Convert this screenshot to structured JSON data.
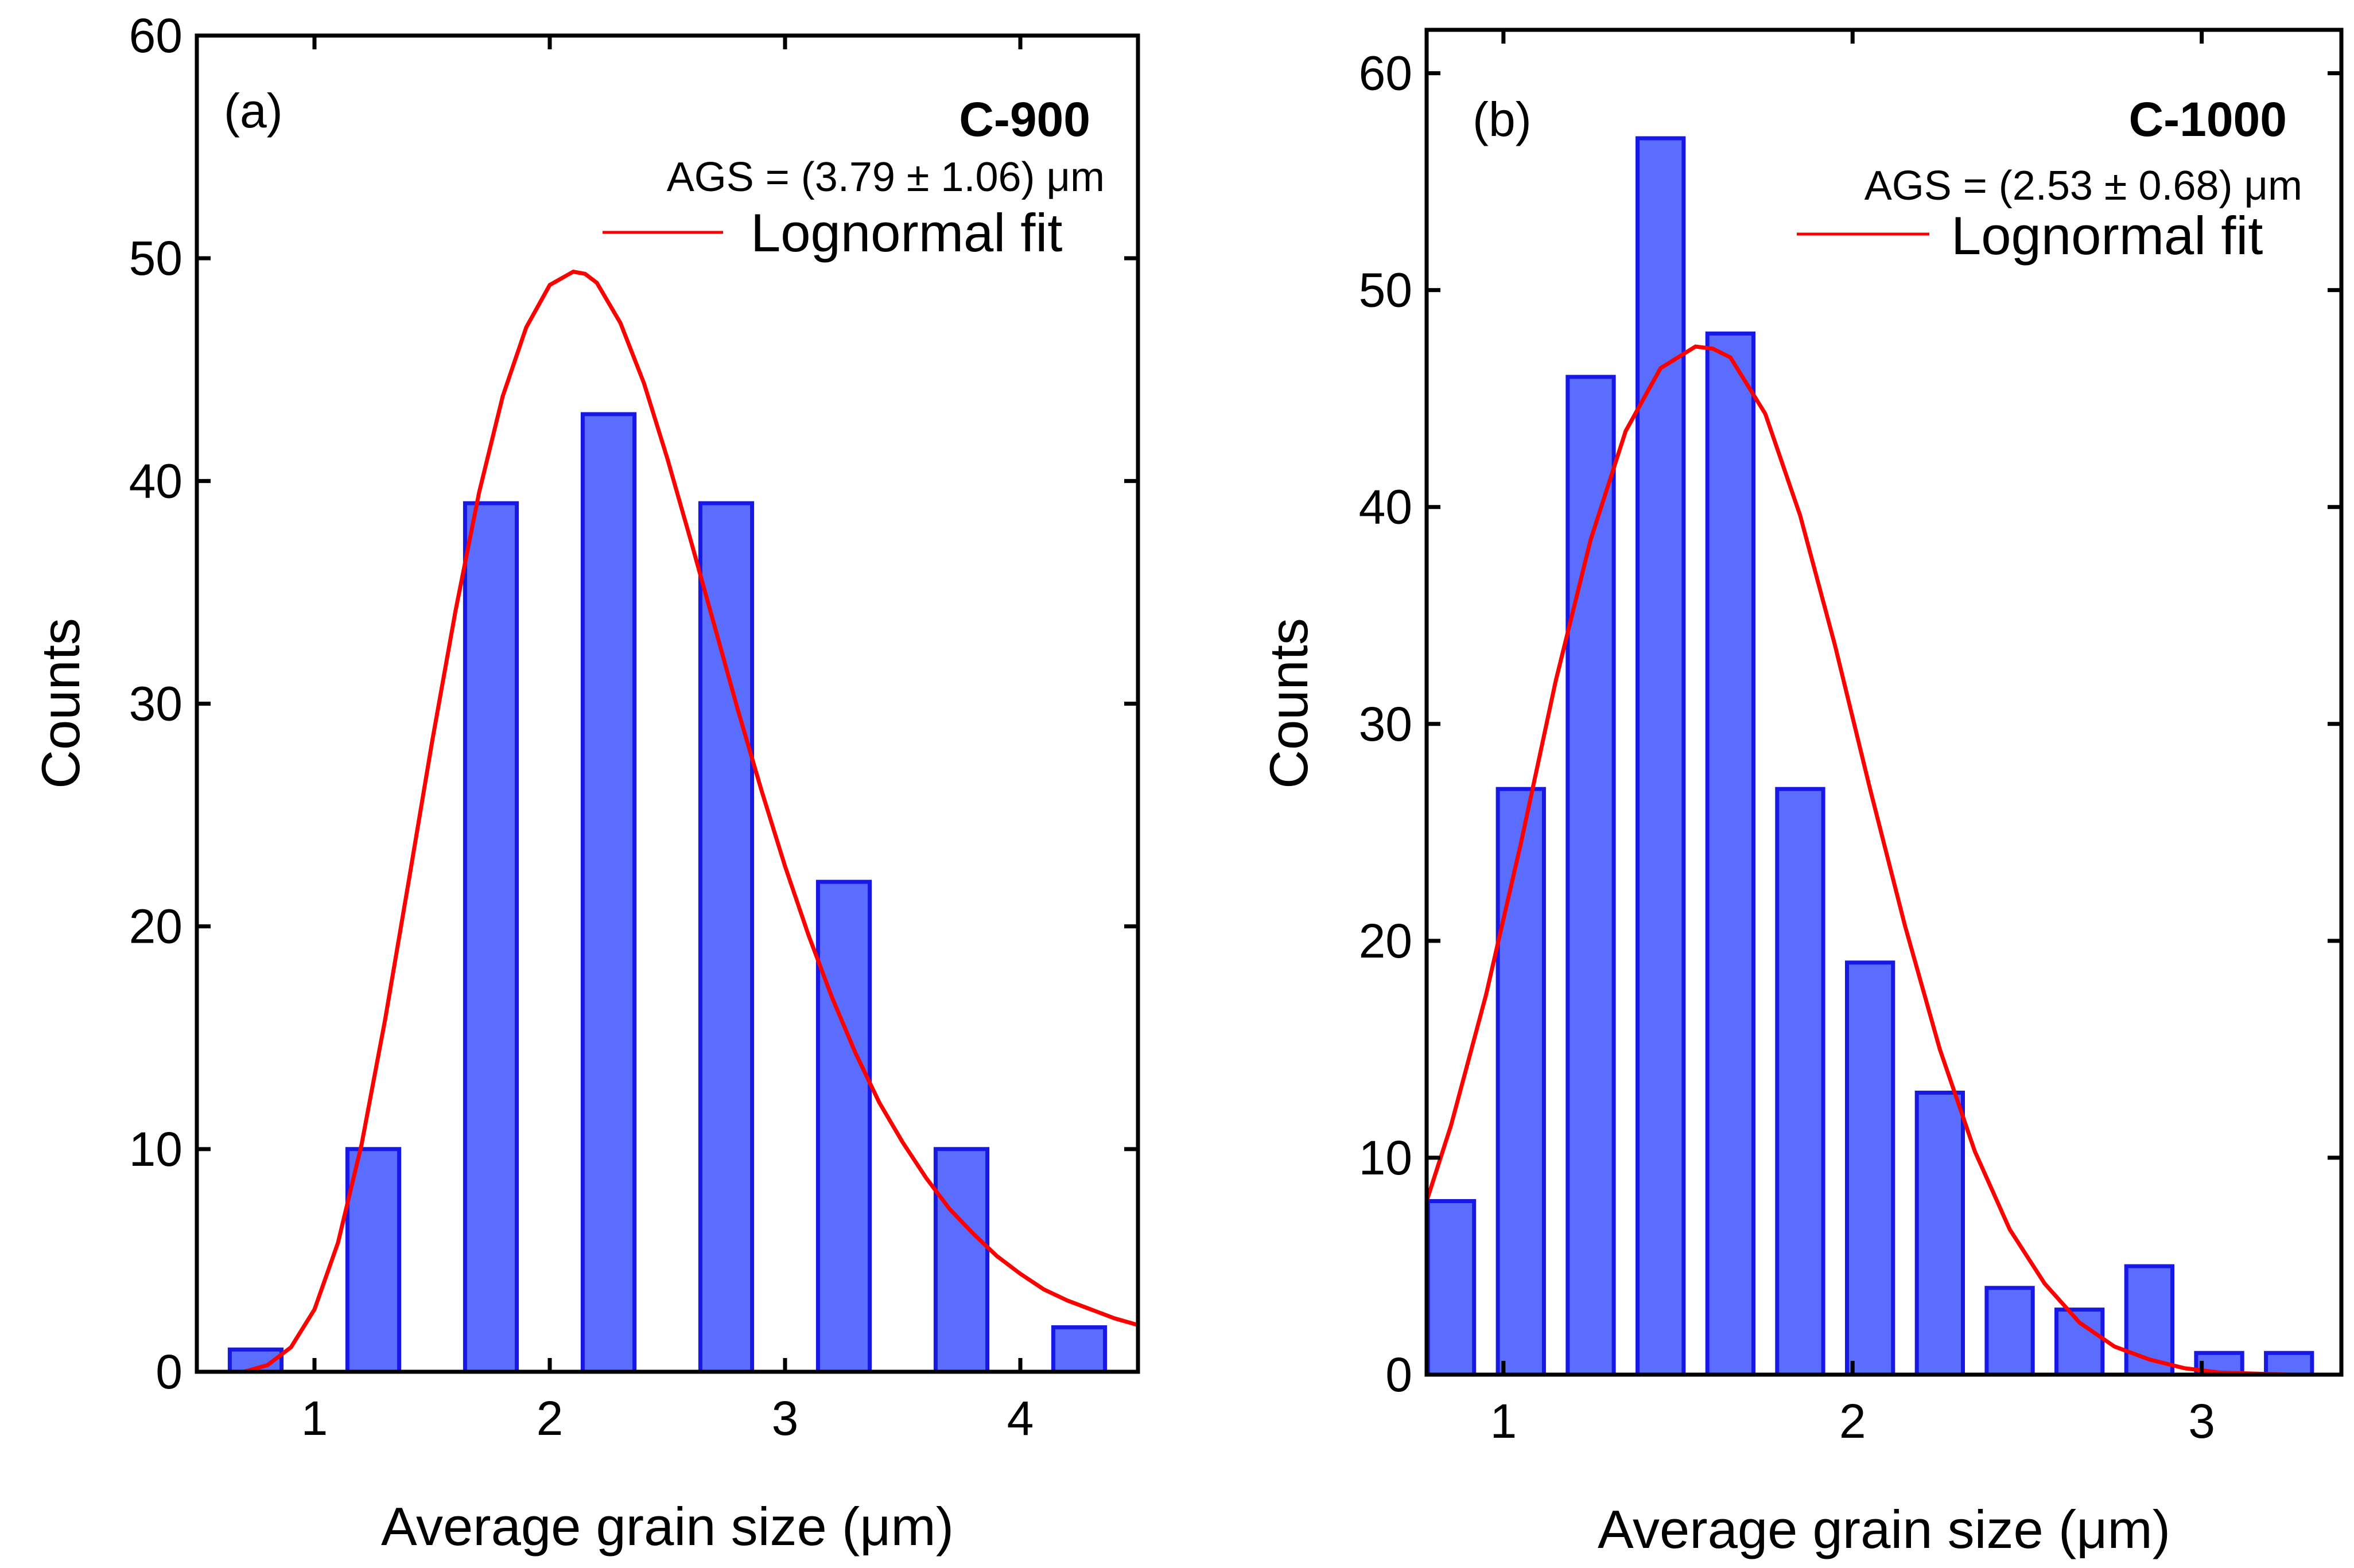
{
  "chart_data": [
    {
      "type": "bar",
      "panel_label": "(a)",
      "sample": "C-900",
      "ags_text": "AGS = (3.79 ± 1.06) μm",
      "legend": "Lognormal fit",
      "xlabel": "Average grain size (μm)",
      "ylabel": "Counts",
      "xlim": [
        0.5,
        4.5
      ],
      "ylim": [
        0,
        60
      ],
      "xticks": [
        1,
        2,
        3,
        4
      ],
      "yticks": [
        0,
        10,
        20,
        30,
        40,
        50,
        60
      ],
      "bin_width": 0.25,
      "bin_centers": [
        0.75,
        1.25,
        1.75,
        2.25,
        2.75,
        3.25,
        3.75,
        4.25
      ],
      "values": [
        1,
        10,
        39,
        43,
        39,
        22,
        10,
        2
      ],
      "fit": {
        "name": "Lognormal fit",
        "x": [
          0.7,
          0.8,
          0.9,
          1.0,
          1.1,
          1.2,
          1.3,
          1.4,
          1.5,
          1.6,
          1.7,
          1.8,
          1.9,
          2.0,
          2.1,
          2.15,
          2.2,
          2.3,
          2.4,
          2.5,
          2.6,
          2.7,
          2.8,
          2.9,
          3.0,
          3.1,
          3.2,
          3.3,
          3.4,
          3.5,
          3.6,
          3.7,
          3.8,
          3.9,
          4.0,
          4.1,
          4.2,
          4.3,
          4.4,
          4.5
        ],
        "y": [
          0.0,
          0.3,
          1.1,
          2.8,
          5.8,
          10.2,
          15.8,
          22.0,
          28.3,
          34.2,
          39.5,
          43.8,
          46.9,
          48.8,
          49.4,
          49.3,
          48.9,
          47.1,
          44.4,
          41.0,
          37.3,
          33.5,
          29.7,
          26.1,
          22.7,
          19.6,
          16.8,
          14.3,
          12.1,
          10.3,
          8.7,
          7.3,
          6.2,
          5.2,
          4.4,
          3.7,
          3.2,
          2.8,
          2.4,
          2.1
        ]
      }
    },
    {
      "type": "bar",
      "panel_label": "(b)",
      "sample": "C-1000",
      "ags_text": "AGS = (2.53 ± 0.68) μm",
      "legend": "Lognormal fit",
      "xlabel": "Average grain size (μm)",
      "ylabel": "Counts",
      "xlim": [
        0.78,
        3.4
      ],
      "ylim": [
        0,
        62
      ],
      "xticks": [
        1,
        2,
        3
      ],
      "yticks": [
        0,
        10,
        20,
        30,
        40,
        50,
        60
      ],
      "bin_width": 0.15,
      "bin_centers": [
        0.85,
        1.05,
        1.25,
        1.45,
        1.65,
        1.85,
        2.05,
        2.25,
        2.45,
        2.65,
        2.85,
        3.05,
        3.25
      ],
      "values": [
        8,
        27,
        46,
        57,
        48,
        27,
        19,
        13,
        4,
        3,
        5,
        1,
        1
      ],
      "fit": {
        "name": "Lognormal fit",
        "x": [
          0.78,
          0.85,
          0.95,
          1.05,
          1.15,
          1.25,
          1.35,
          1.45,
          1.55,
          1.6,
          1.65,
          1.75,
          1.85,
          1.95,
          2.05,
          2.15,
          2.25,
          2.35,
          2.45,
          2.55,
          2.65,
          2.75,
          2.85,
          2.95,
          3.05,
          3.15,
          3.25,
          3.4
        ],
        "y": [
          8.0,
          11.5,
          17.5,
          24.5,
          32.0,
          38.5,
          43.5,
          46.4,
          47.4,
          47.3,
          46.9,
          44.3,
          39.6,
          33.6,
          27.0,
          20.7,
          15.0,
          10.3,
          6.7,
          4.2,
          2.4,
          1.3,
          0.7,
          0.3,
          0.1,
          0.05,
          0.0,
          0.0
        ]
      }
    }
  ]
}
